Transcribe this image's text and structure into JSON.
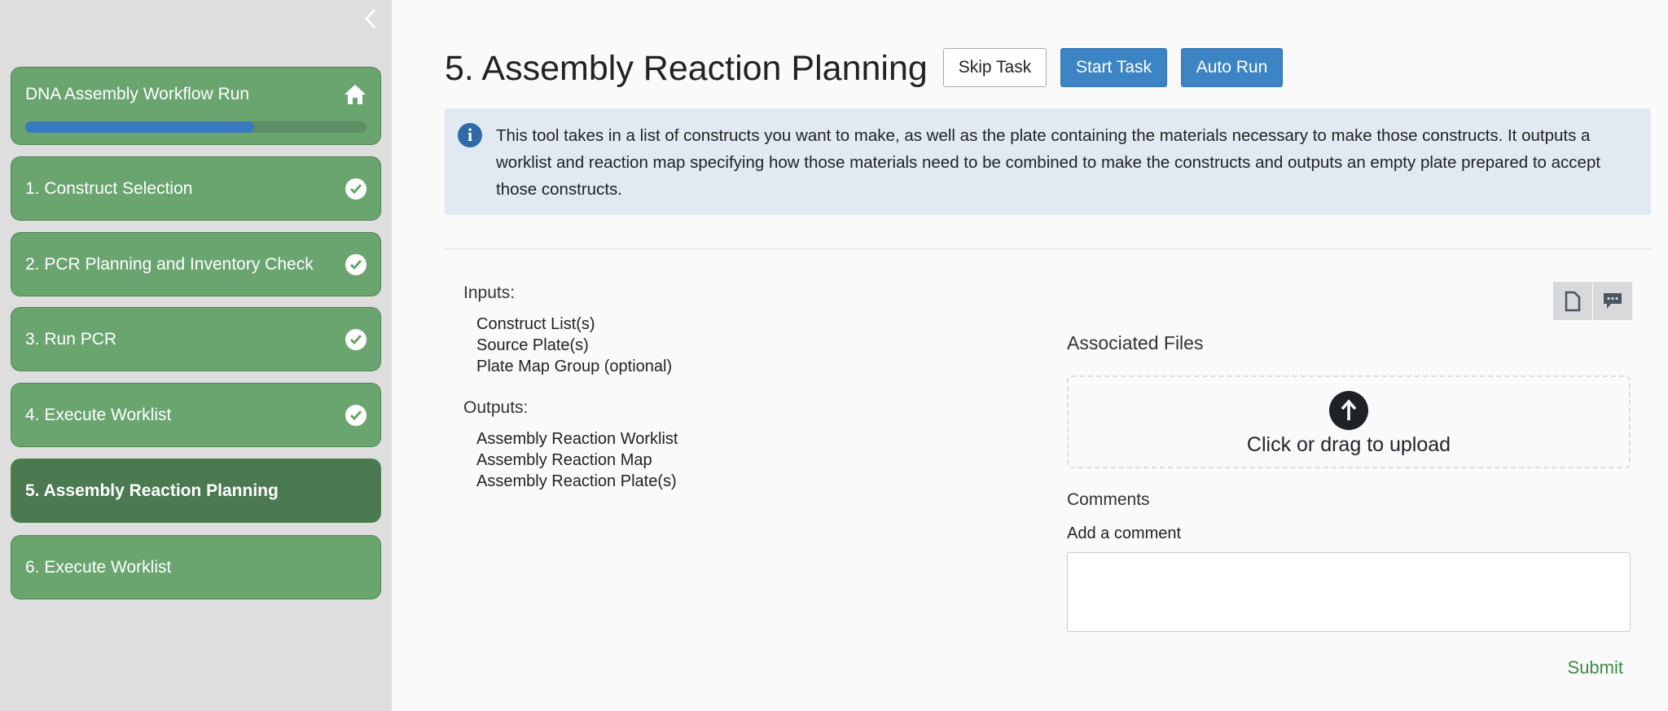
{
  "sidebar": {
    "collapse_icon": "chevron-left",
    "workflow_title": "DNA Assembly Workflow Run",
    "progress_percent": 67,
    "steps": [
      {
        "label": "1. Construct Selection",
        "status": "complete"
      },
      {
        "label": "2. PCR Planning and Inventory Check",
        "status": "complete"
      },
      {
        "label": "3. Run PCR",
        "status": "complete"
      },
      {
        "label": "4. Execute Worklist",
        "status": "complete"
      },
      {
        "label": "5. Assembly Reaction Planning",
        "status": "active"
      },
      {
        "label": "6. Execute Worklist",
        "status": "pending"
      }
    ]
  },
  "main": {
    "title": "5. Assembly Reaction Planning",
    "buttons": {
      "skip": "Skip Task",
      "start": "Start Task",
      "auto": "Auto Run"
    },
    "info": "This tool takes in a list of constructs you want to make, as well as the plate containing the materials necessary to make those constructs. It outputs a worklist and reaction map specifying how those materials need to be combined to make the constructs and outputs an empty plate prepared to accept those constructs.",
    "inputs_label": "Inputs:",
    "inputs": [
      "Construct List(s)",
      "Source Plate(s)",
      "Plate Map Group (optional)"
    ],
    "outputs_label": "Outputs:",
    "outputs": [
      "Assembly Reaction Worklist",
      "Assembly Reaction Map",
      "Assembly Reaction Plate(s)"
    ],
    "files_label": "Associated Files",
    "upload_text": "Click or drag to upload",
    "comments_label": "Comments",
    "add_comment_label": "Add a comment",
    "comment_value": "",
    "submit": "Submit"
  },
  "colors": {
    "step_green": "#6aa46f",
    "step_active": "#4b7a51",
    "primary": "#3c84c4",
    "info_bg": "#e1eaf3",
    "submit": "#3d8a45"
  }
}
